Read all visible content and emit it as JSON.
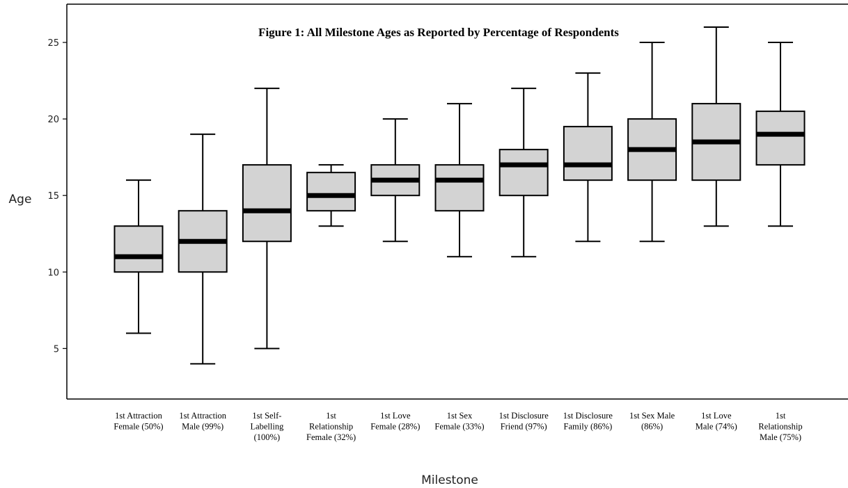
{
  "chart_data": {
    "type": "boxplot",
    "title": "Figure 1: All Milestone Ages as Reported by Percentage of Respondents",
    "xlabel": "Milestone",
    "ylabel": "Age",
    "ylim": [
      1.7,
      27.5
    ],
    "yticks": [
      5,
      10,
      15,
      20,
      25
    ],
    "grid": false,
    "box_color": "#d3d3d3",
    "categories": [
      [
        "1st Attraction",
        "Female (50%)"
      ],
      [
        "1st Attraction",
        "Male (99%)"
      ],
      [
        "1st Self-",
        "Labelling",
        "(100%)"
      ],
      [
        "1st",
        "Relationship",
        "Female (32%)"
      ],
      [
        "1st Love",
        "Female (28%)"
      ],
      [
        "1st Sex",
        "Female (33%)"
      ],
      [
        "1st Disclosure",
        "Friend (97%)"
      ],
      [
        "1st Disclosure",
        "Family (86%)"
      ],
      [
        "1st Sex Male",
        "(86%)"
      ],
      [
        "1st Love",
        "Male (74%)"
      ],
      [
        "1st",
        "Relationship",
        "Male (75%)"
      ]
    ],
    "boxes": [
      {
        "min": 6,
        "q1": 10,
        "median": 11,
        "q3": 13,
        "max": 16
      },
      {
        "min": 4,
        "q1": 10,
        "median": 12,
        "q3": 14,
        "max": 19
      },
      {
        "min": 5,
        "q1": 12,
        "median": 14,
        "q3": 17,
        "max": 22
      },
      {
        "min": 13,
        "q1": 14,
        "median": 15,
        "q3": 16.5,
        "max": 17
      },
      {
        "min": 12,
        "q1": 15,
        "median": 16,
        "q3": 17,
        "max": 20
      },
      {
        "min": 11,
        "q1": 14,
        "median": 16,
        "q3": 17,
        "max": 21
      },
      {
        "min": 11,
        "q1": 15,
        "median": 17,
        "q3": 18,
        "max": 22
      },
      {
        "min": 12,
        "q1": 16,
        "median": 17,
        "q3": 19.5,
        "max": 23
      },
      {
        "min": 12,
        "q1": 16,
        "median": 18,
        "q3": 20,
        "max": 25
      },
      {
        "min": 13,
        "q1": 16,
        "median": 18.5,
        "q3": 21,
        "max": 26
      },
      {
        "min": 13,
        "q1": 17,
        "median": 19,
        "q3": 20.5,
        "max": 25
      }
    ]
  }
}
